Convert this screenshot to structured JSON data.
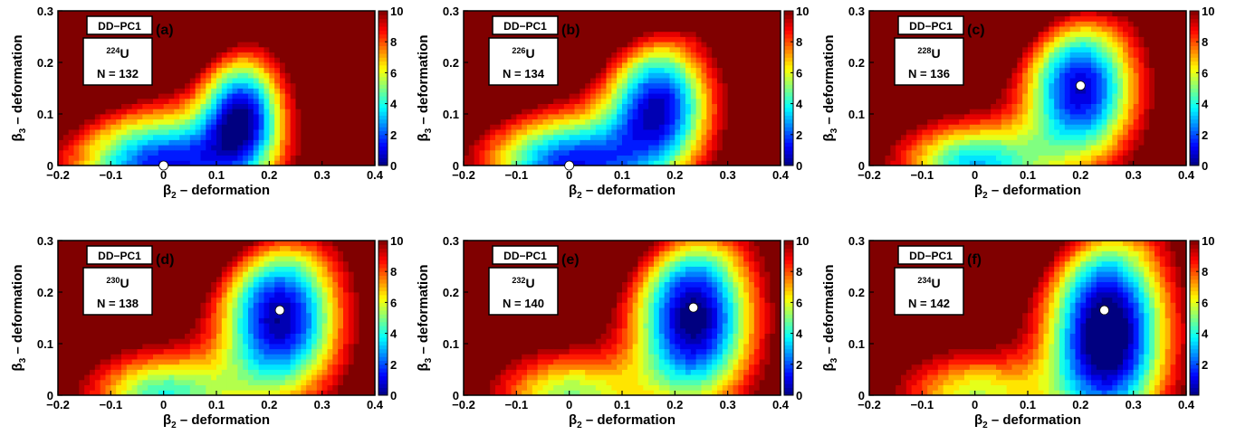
{
  "figure": {
    "x_ticks": [
      "−0.2",
      "−0.1",
      "0",
      "0.1",
      "0.2",
      "0.3",
      "0.4"
    ],
    "y_ticks": [
      "0",
      "0.1",
      "0.2",
      "0.3"
    ],
    "colorbar_ticks_full": [
      "0",
      "2",
      "4",
      "6",
      "8",
      "10"
    ],
    "colorbar_ticks_no_zero": [
      "2",
      "4",
      "6",
      "8",
      "10"
    ]
  },
  "chart_data": [
    {
      "type": "heatmap",
      "panel": "(a)",
      "method": "DD−PC1",
      "A": "224",
      "element": "U",
      "neutrons": "N = 132",
      "xlim": [
        -0.2,
        0.4
      ],
      "ylim": [
        0,
        0.3
      ],
      "zlim": [
        0,
        10
      ],
      "xlabel_sym": "β",
      "xlabel_sub": "2",
      "xlabel_rest": " – deformation",
      "ylabel_sym": "β",
      "ylabel_sub": "3",
      "ylabel_rest": " – deformation",
      "minimum": {
        "beta2": 0.0,
        "beta3": 0.0
      },
      "wells": [
        {
          "beta2": 0.0,
          "beta3": 0.0,
          "depth": 10.5,
          "sx": 0.12,
          "sy": 0.075
        },
        {
          "beta2": 0.15,
          "beta3": 0.105,
          "depth": 10.0,
          "sx": 0.055,
          "sy": 0.08
        }
      ],
      "cbar_zero": true
    },
    {
      "type": "heatmap",
      "panel": "(b)",
      "method": "DD−PC1",
      "A": "226",
      "element": "U",
      "neutrons": "N = 134",
      "xlim": [
        -0.2,
        0.4
      ],
      "ylim": [
        0,
        0.3
      ],
      "zlim": [
        0,
        10
      ],
      "xlabel_sym": "β",
      "xlabel_sub": "2",
      "xlabel_rest": " – deformation",
      "ylabel_sym": "β",
      "ylabel_sub": "3",
      "ylabel_rest": " – deformation",
      "minimum": {
        "beta2": 0.0,
        "beta3": 0.0
      },
      "wells": [
        {
          "beta2": 0.0,
          "beta3": 0.0,
          "depth": 10.3,
          "sx": 0.11,
          "sy": 0.07
        },
        {
          "beta2": 0.17,
          "beta3": 0.12,
          "depth": 10.5,
          "sx": 0.07,
          "sy": 0.09
        }
      ],
      "cbar_zero": true
    },
    {
      "type": "heatmap",
      "panel": "(c)",
      "method": "DD−PC1",
      "A": "228",
      "element": "U",
      "neutrons": "N = 136",
      "xlim": [
        -0.2,
        0.4
      ],
      "ylim": [
        0,
        0.3
      ],
      "zlim": [
        0,
        10
      ],
      "xlabel_sym": "β",
      "xlabel_sub": "2",
      "xlabel_rest": " – deformation",
      "ylabel_sym": "β",
      "ylabel_sub": "3",
      "ylabel_rest": " – deformation",
      "minimum": {
        "beta2": 0.2,
        "beta3": 0.155
      },
      "wells": [
        {
          "beta2": 0.0,
          "beta3": 0.0,
          "depth": 8.5,
          "sx": 0.1,
          "sy": 0.06
        },
        {
          "beta2": 0.2,
          "beta3": 0.15,
          "depth": 11.0,
          "sx": 0.075,
          "sy": 0.1
        }
      ],
      "cbar_zero": true
    },
    {
      "type": "heatmap",
      "panel": "(d)",
      "method": "DD−PC1",
      "A": "230",
      "element": "U",
      "neutrons": "N = 138",
      "xlim": [
        -0.2,
        0.4
      ],
      "ylim": [
        0,
        0.3
      ],
      "zlim": [
        0,
        10
      ],
      "xlabel_sym": "β",
      "xlabel_sub": "2",
      "xlabel_rest": " – deformation",
      "ylabel_sym": "β",
      "ylabel_sub": "3",
      "ylabel_rest": " – deformation",
      "minimum": {
        "beta2": 0.22,
        "beta3": 0.165
      },
      "wells": [
        {
          "beta2": 0.0,
          "beta3": 0.0,
          "depth": 7.5,
          "sx": 0.1,
          "sy": 0.06
        },
        {
          "beta2": 0.22,
          "beta3": 0.15,
          "depth": 11.5,
          "sx": 0.08,
          "sy": 0.11
        }
      ],
      "cbar_zero": true
    },
    {
      "type": "heatmap",
      "panel": "(e)",
      "method": "DD−PC1",
      "A": "232",
      "element": "U",
      "neutrons": "N = 140",
      "xlim": [
        -0.2,
        0.4
      ],
      "ylim": [
        0,
        0.3
      ],
      "zlim": [
        0,
        10
      ],
      "xlabel_sym": "β",
      "xlabel_sub": "2",
      "xlabel_rest": " – deformation",
      "ylabel_sym": "β",
      "ylabel_sub": "3",
      "ylabel_rest": " – deformation",
      "minimum": {
        "beta2": 0.235,
        "beta3": 0.17
      },
      "wells": [
        {
          "beta2": 0.0,
          "beta3": 0.0,
          "depth": 6.5,
          "sx": 0.1,
          "sy": 0.06
        },
        {
          "beta2": 0.235,
          "beta3": 0.15,
          "depth": 12.0,
          "sx": 0.08,
          "sy": 0.12
        }
      ],
      "cbar_zero": true
    },
    {
      "type": "heatmap",
      "panel": "(f)",
      "method": "DD−PC1",
      "A": "234",
      "element": "U",
      "neutrons": "N = 142",
      "xlim": [
        -0.2,
        0.4
      ],
      "ylim": [
        0,
        0.3
      ],
      "zlim": [
        0,
        10
      ],
      "xlabel_sym": "β",
      "xlabel_sub": "2",
      "xlabel_rest": " – deformation",
      "ylabel_sym": "β",
      "ylabel_sub": "3",
      "ylabel_rest": " – deformation",
      "minimum": {
        "beta2": 0.245,
        "beta3": 0.165
      },
      "wells": [
        {
          "beta2": 0.0,
          "beta3": 0.0,
          "depth": 6.0,
          "sx": 0.1,
          "sy": 0.06
        },
        {
          "beta2": 0.25,
          "beta3": 0.12,
          "depth": 13.0,
          "sx": 0.08,
          "sy": 0.14
        }
      ],
      "cbar_zero": false
    }
  ]
}
